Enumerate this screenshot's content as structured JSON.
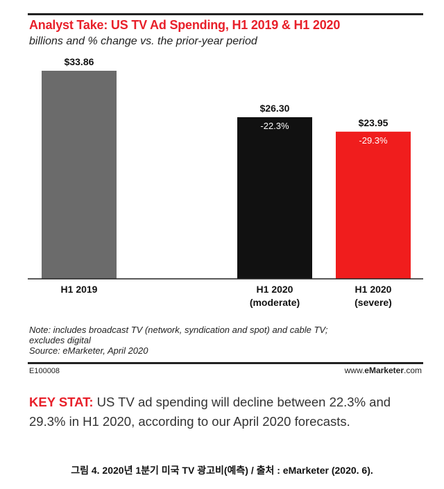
{
  "header": {
    "title": "Analyst Take: US TV Ad Spending, H1 2019 & H1 2020",
    "subtitle": "billions and % change vs. the prior-year period"
  },
  "chart_data": {
    "type": "bar",
    "title": "Analyst Take: US TV Ad Spending, H1 2019 & H1 2020",
    "subtitle": "billions and % change vs. the prior-year period",
    "categories": [
      "H1 2019",
      "H1 2020\n(moderate)",
      "H1 2020\n(severe)"
    ],
    "category_lines": [
      [
        "H1 2019"
      ],
      [
        "H1 2020",
        "(moderate)"
      ],
      [
        "H1 2020",
        "(severe)"
      ]
    ],
    "values": [
      33.86,
      26.3,
      23.95
    ],
    "value_labels": [
      "$33.86",
      "$26.30",
      "$23.95"
    ],
    "change_labels": [
      "",
      "-22.3%",
      "-29.3%"
    ],
    "colors": [
      "#6b6b6b",
      "#111111",
      "#f01d1d"
    ],
    "ylim": [
      0,
      35
    ],
    "grid": false,
    "xlabel": "",
    "ylabel": ""
  },
  "notes": {
    "line1": "Note: includes broadcast TV (network, syndication and spot) and cable TV;",
    "line2": "excludes digital",
    "source": "Source: eMarketer, April 2020"
  },
  "footer": {
    "code": "E100008",
    "brand_prefix": "www.",
    "brand_name": "eMarketer",
    "brand_suffix": ".com"
  },
  "key_stat": {
    "label": "KEY STAT:",
    "text": " US TV ad spending will decline between 22.3% and 29.3% in H1 2020, according to our April 2020 forecasts."
  },
  "caption": "그림 4. 2020년 1분기 미국 TV 광고비(예측) / 출처 : eMarketer (2020. 6)."
}
